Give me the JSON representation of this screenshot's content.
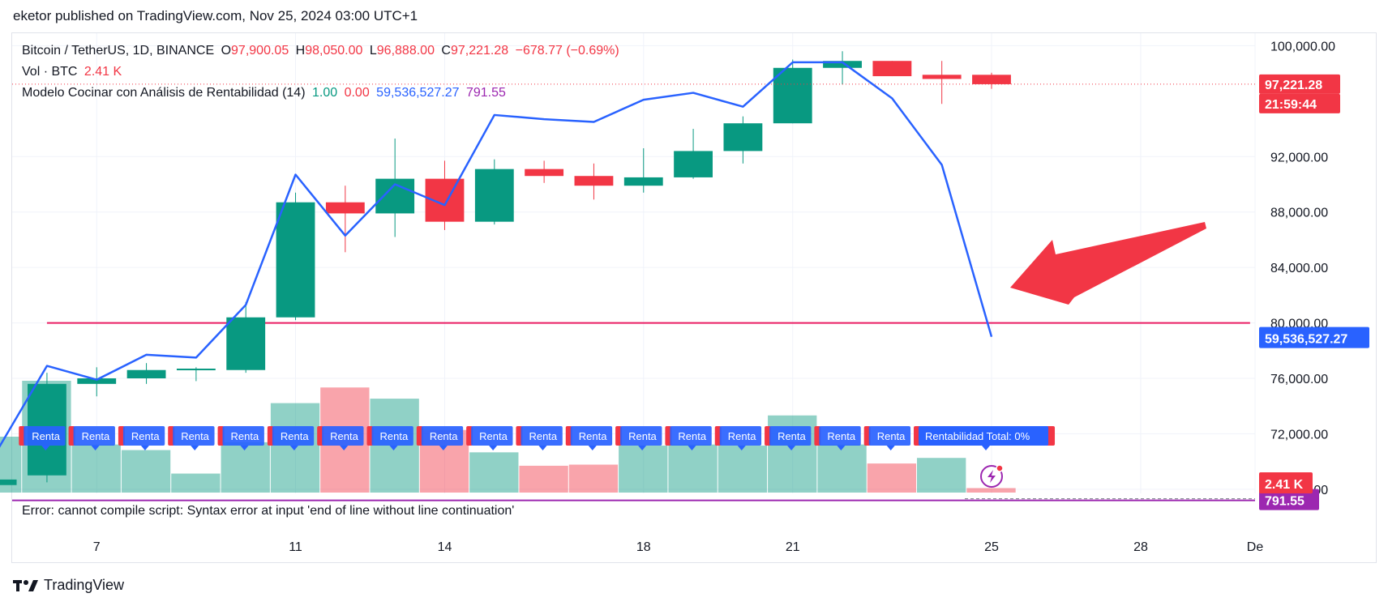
{
  "publisher": "eketor published on TradingView.com, Nov 25, 2024 03:00 UTC+1",
  "legend": {
    "symbol": "Bitcoin / TetherUS, 1D, BINANCE",
    "o_label": "O",
    "o_value": "97,900.05",
    "h_label": "H",
    "h_value": "98,050.00",
    "l_label": "L",
    "l_value": "96,888.00",
    "c_label": "C",
    "c_value": "97,221.28",
    "change": "−678.77 (−0.69%)",
    "vol_label": "Vol · BTC",
    "vol_value": "2.41 K",
    "indicator_name": "Modelo Cocinar con Análisis de Rentabilidad (14)",
    "ind_v1": "1.00",
    "ind_v2": "0.00",
    "ind_v3": "59,536,527.27",
    "ind_v4": "791.55"
  },
  "error_message": "Error: cannot compile script: Syntax error at input 'end of line without line continuation'",
  "brand": "TradingView",
  "colors": {
    "up": "#089981",
    "down": "#f23645",
    "line": "#2962ff",
    "hline": "#e91e63",
    "arrow": "#f23645",
    "purple": "#9c27b0"
  },
  "price_labels": {
    "last_price": "97,221.28",
    "countdown": "21:59:44",
    "indicator_value": "59,536,527.27",
    "purple_value": "791.55",
    "volume_value": "2.41 K"
  },
  "badges": {
    "short_label": "Renta",
    "total_label": "Rentabilidad Total: 0%"
  },
  "chart_data": {
    "type": "candlestick",
    "x_tick_labels": [
      "7",
      "11",
      "14",
      "18",
      "21",
      "25",
      "28",
      "De"
    ],
    "y_tick_labels": [
      "100,000.00",
      "92,000.00",
      "88,000.00",
      "84,000.00",
      "80,000.00",
      "76,000.00",
      "72,000.00",
      "68,000.00"
    ],
    "y_ticks": [
      100000,
      92000,
      88000,
      84000,
      80000,
      76000,
      72000,
      68000
    ],
    "ylim": [
      67700,
      100900
    ],
    "x_day_range": [
      5.3,
      30.3
    ],
    "candles": [
      {
        "day": 5,
        "o": 68300,
        "h": 68700,
        "l": 67700,
        "c": 68700
      },
      {
        "day": 6,
        "o": 69000,
        "h": 76400,
        "l": 68500,
        "c": 75600
      },
      {
        "day": 7,
        "o": 75600,
        "h": 76800,
        "l": 74700,
        "c": 76000
      },
      {
        "day": 8,
        "o": 76000,
        "h": 77100,
        "l": 75600,
        "c": 76600
      },
      {
        "day": 9,
        "o": 76600,
        "h": 76800,
        "l": 75800,
        "c": 76700
      },
      {
        "day": 10,
        "o": 76600,
        "h": 81500,
        "l": 76400,
        "c": 80400
      },
      {
        "day": 11,
        "o": 80400,
        "h": 89400,
        "l": 80200,
        "c": 88700
      },
      {
        "day": 12,
        "o": 88700,
        "h": 89900,
        "l": 85100,
        "c": 87900
      },
      {
        "day": 13,
        "o": 87900,
        "h": 93300,
        "l": 86200,
        "c": 90400
      },
      {
        "day": 14,
        "o": 90400,
        "h": 91700,
        "l": 86700,
        "c": 87300
      },
      {
        "day": 15,
        "o": 87300,
        "h": 91800,
        "l": 87100,
        "c": 91100
      },
      {
        "day": 16,
        "o": 91100,
        "h": 91700,
        "l": 90100,
        "c": 90600
      },
      {
        "day": 17,
        "o": 90600,
        "h": 91500,
        "l": 88900,
        "c": 89900
      },
      {
        "day": 18,
        "o": 89900,
        "h": 92600,
        "l": 89400,
        "c": 90500
      },
      {
        "day": 19,
        "o": 90500,
        "h": 94000,
        "l": 90400,
        "c": 92400
      },
      {
        "day": 20,
        "o": 92400,
        "h": 94900,
        "l": 91500,
        "c": 94400
      },
      {
        "day": 21,
        "o": 94400,
        "h": 99000,
        "l": 94400,
        "c": 98400
      },
      {
        "day": 22,
        "o": 98400,
        "h": 99600,
        "l": 97200,
        "c": 98900
      },
      {
        "day": 23,
        "o": 98900,
        "h": 98900,
        "l": 97800,
        "c": 97800
      },
      {
        "day": 24,
        "o": 97900,
        "h": 98900,
        "l": 95800,
        "c": 97600
      },
      {
        "day": 25,
        "o": 97900,
        "h": 98050,
        "l": 96888,
        "c": 97221.28
      }
    ],
    "indicator_line": {
      "name": "Modelo Cocinar con Análisis de Rentabilidad (14)",
      "points": [
        {
          "day": 5,
          "y": 70800
        },
        {
          "day": 6,
          "y": 76900
        },
        {
          "day": 7,
          "y": 75900
        },
        {
          "day": 8,
          "y": 77700
        },
        {
          "day": 9,
          "y": 77500
        },
        {
          "day": 10,
          "y": 81300
        },
        {
          "day": 11,
          "y": 90700
        },
        {
          "day": 12,
          "y": 86300
        },
        {
          "day": 13,
          "y": 90000
        },
        {
          "day": 14,
          "y": 88500
        },
        {
          "day": 15,
          "y": 95000
        },
        {
          "day": 16,
          "y": 94700
        },
        {
          "day": 17,
          "y": 94500
        },
        {
          "day": 18,
          "y": 96100
        },
        {
          "day": 19,
          "y": 96600
        },
        {
          "day": 20,
          "y": 95600
        },
        {
          "day": 21,
          "y": 98800
        },
        {
          "day": 22,
          "y": 98800
        },
        {
          "day": 23,
          "y": 96200
        },
        {
          "day": 24,
          "y": 91400
        },
        {
          "day": 25,
          "y": 79000
        }
      ]
    },
    "horizontal_line": {
      "y": 80000,
      "from_day": 6.0,
      "to_day": 30.2
    },
    "volume": [
      {
        "day": 5,
        "v": 0.5,
        "up": true
      },
      {
        "day": 6,
        "v": 1.0,
        "up": true
      },
      {
        "day": 7,
        "v": 0.43,
        "up": true
      },
      {
        "day": 8,
        "v": 0.38,
        "up": true
      },
      {
        "day": 9,
        "v": 0.17,
        "up": true
      },
      {
        "day": 10,
        "v": 0.45,
        "up": true
      },
      {
        "day": 11,
        "v": 0.8,
        "up": true
      },
      {
        "day": 12,
        "v": 0.94,
        "up": false
      },
      {
        "day": 13,
        "v": 0.84,
        "up": true
      },
      {
        "day": 14,
        "v": 0.56,
        "up": false
      },
      {
        "day": 15,
        "v": 0.36,
        "up": true
      },
      {
        "day": 16,
        "v": 0.24,
        "up": false
      },
      {
        "day": 17,
        "v": 0.25,
        "up": false
      },
      {
        "day": 18,
        "v": 0.42,
        "up": true
      },
      {
        "day": 19,
        "v": 0.43,
        "up": true
      },
      {
        "day": 20,
        "v": 0.42,
        "up": true
      },
      {
        "day": 21,
        "v": 0.69,
        "up": true
      },
      {
        "day": 22,
        "v": 0.43,
        "up": true
      },
      {
        "day": 23,
        "v": 0.26,
        "up": false
      },
      {
        "day": 24,
        "v": 0.31,
        "up": true
      },
      {
        "day": 25,
        "v": 0.04,
        "up": false
      }
    ],
    "badge_days": [
      6,
      7,
      8,
      9,
      10,
      11,
      12,
      13,
      14,
      15,
      16,
      17,
      18,
      19,
      20,
      21,
      22,
      23
    ],
    "last_badge_day": 24,
    "purple_level": 67900,
    "last_price": 97221.28
  }
}
